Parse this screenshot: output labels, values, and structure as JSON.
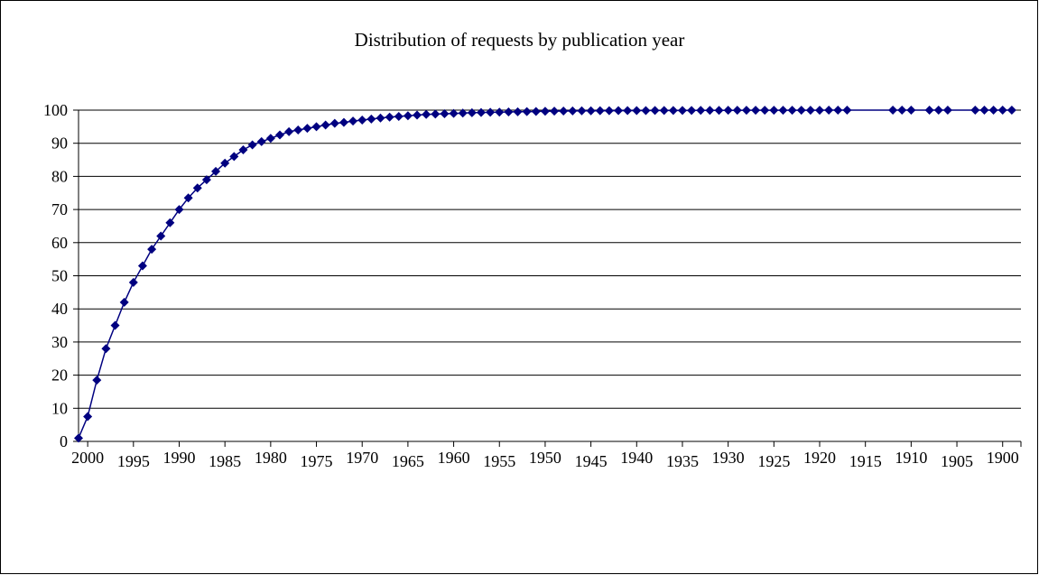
{
  "chart_data": {
    "type": "line",
    "title": "Distribution of requests by publication year",
    "xlabel": "",
    "ylabel": "",
    "ylim": [
      0,
      100
    ],
    "y_ticks": [
      0,
      10,
      20,
      30,
      40,
      50,
      60,
      70,
      80,
      90,
      100
    ],
    "x_tick_labels": [
      "2000",
      "1995",
      "1990",
      "1985",
      "1980",
      "1975",
      "1970",
      "1965",
      "1960",
      "1955",
      "1950",
      "1945",
      "1940",
      "1935",
      "1930",
      "1925",
      "1920",
      "1915",
      "1910",
      "1905",
      "1900"
    ],
    "x_reversed": true,
    "grid": true,
    "legend": "none",
    "colors": {
      "line": "#000080",
      "marker": "#000080",
      "grid": "#000000"
    },
    "series": [
      {
        "x": [
          2001,
          2000,
          1999,
          1998,
          1997,
          1996,
          1995,
          1994,
          1993,
          1992,
          1991,
          1990,
          1989,
          1988,
          1987,
          1986,
          1985,
          1984,
          1983,
          1982,
          1981,
          1980,
          1979,
          1978,
          1977,
          1976,
          1975,
          1974,
          1973,
          1972,
          1971,
          1970,
          1969,
          1968,
          1967,
          1966,
          1965,
          1964,
          1963,
          1962,
          1961,
          1960,
          1959,
          1958,
          1957,
          1956,
          1955,
          1954,
          1953,
          1952,
          1951,
          1950,
          1949,
          1948,
          1947,
          1946,
          1945,
          1944,
          1943,
          1942,
          1941,
          1940,
          1939,
          1938,
          1937,
          1936,
          1935,
          1934,
          1933,
          1932,
          1931,
          1930,
          1929,
          1928,
          1927,
          1926,
          1925,
          1924,
          1923,
          1922,
          1921,
          1920,
          1919,
          1918,
          1917,
          1912,
          1911,
          1910,
          1908,
          1907,
          1906,
          1903,
          1902,
          1901,
          1900,
          1899
        ],
        "values": [
          1,
          7.5,
          18.5,
          28,
          35,
          42,
          48,
          53,
          58,
          62,
          66,
          70,
          73.5,
          76.5,
          79,
          81.5,
          84,
          86,
          88,
          89.5,
          90.5,
          91.5,
          92.5,
          93.5,
          94,
          94.5,
          95,
          95.5,
          96,
          96.3,
          96.7,
          97,
          97.3,
          97.6,
          97.9,
          98.1,
          98.3,
          98.5,
          98.7,
          98.8,
          98.9,
          99,
          99.1,
          99.2,
          99.3,
          99.35,
          99.4,
          99.45,
          99.5,
          99.55,
          99.6,
          99.65,
          99.7,
          99.72,
          99.75,
          99.78,
          99.8,
          99.82,
          99.84,
          99.85,
          99.86,
          99.87,
          99.88,
          99.89,
          99.9,
          99.9,
          99.9,
          99.91,
          99.92,
          99.93,
          99.94,
          99.95,
          99.95,
          99.96,
          99.96,
          99.97,
          99.97,
          99.97,
          99.98,
          99.98,
          99.98,
          99.98,
          99.99,
          99.99,
          99.99,
          99.99,
          99.99,
          99.99,
          100,
          100,
          100,
          100,
          100,
          100,
          100,
          100
        ]
      }
    ]
  }
}
